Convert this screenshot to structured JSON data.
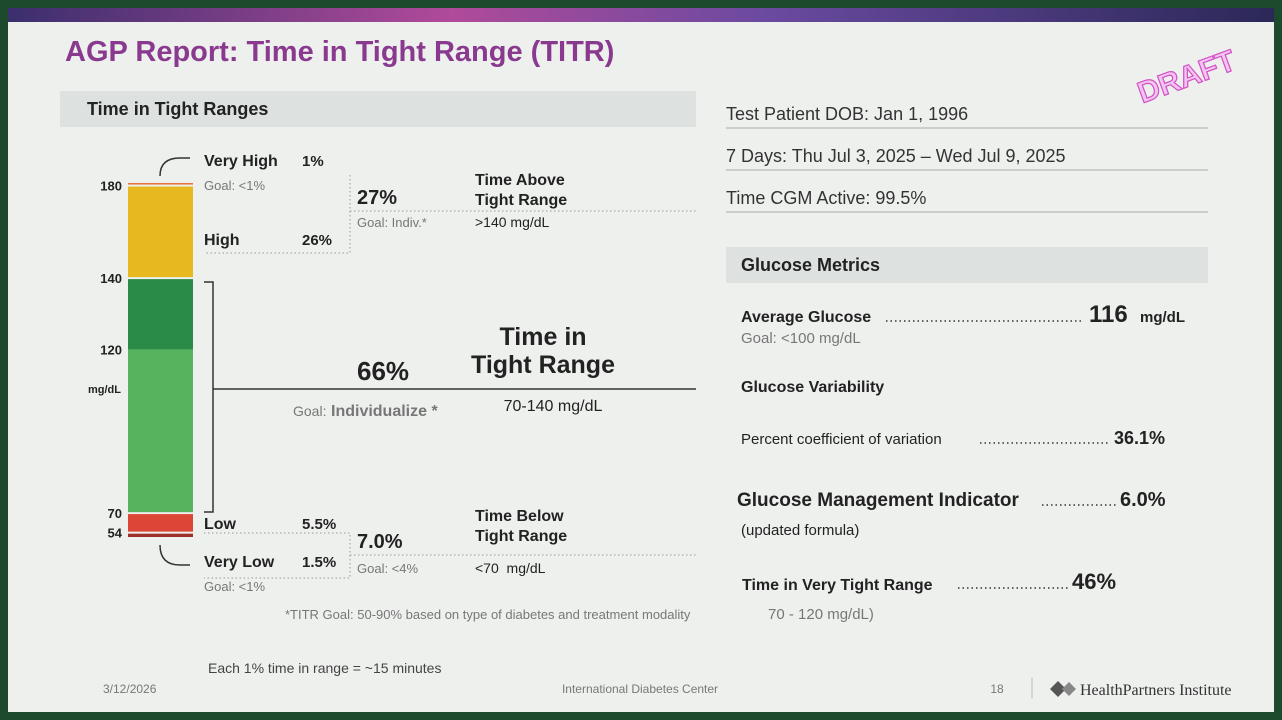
{
  "header": {
    "title": "AGP Report: Time in Tight Range (TITR)",
    "draft": "DRAFT"
  },
  "left": {
    "heading": "Time in Tight Ranges",
    "unit": "mg/dL",
    "bar": {
      "segments": [
        {
          "name": "Very Low",
          "value": 1.5,
          "label": "1.5%",
          "goal": "Goal: <1%",
          "color": "#9c2f2a",
          "top": 54
        },
        {
          "name": "Low",
          "value": 5.5,
          "label": "5.5%",
          "color": "#dc4636",
          "top": 70
        },
        {
          "value": 66,
          "label": "66%",
          "color": "#2a8a47",
          "top": 140
        },
        {
          "name": "High",
          "value": 26,
          "label": "26%",
          "color": "#e8b820",
          "top": 180
        },
        {
          "name": "Very High",
          "value": 1,
          "label": "1%",
          "goal": "Goal: <1%",
          "color": "#e8763a"
        }
      ],
      "inner": {
        "value": 46,
        "label": "46%",
        "color": "#58b35e",
        "top": 120
      }
    },
    "above": {
      "label": "27%",
      "goal": "Goal: Indiv.*",
      "title": [
        "Time Above",
        "Tight Range"
      ],
      "range": ">140 mg/dL"
    },
    "tight": {
      "goal_prefix": "Goal:",
      "goal": "Individualize *",
      "title": [
        "Time in",
        "Tight Range"
      ],
      "range": "70-140 mg/dL"
    },
    "below": {
      "label": "7.0%",
      "goal": "Goal: <4%",
      "title": [
        "Time Below",
        "Tight Range"
      ],
      "range": "<70  mg/dL"
    },
    "footnote": "*TITR Goal: 50-90% based on type of diabetes and treatment modality",
    "minutes_note": "Each 1% time in range = ~15 minutes"
  },
  "right": {
    "patient": [
      "Test Patient DOB: Jan 1, 1996",
      "7 Days: Thu Jul 3, 2025 – Wed Jul 9, 2025",
      "Time CGM Active: 99.5%"
    ],
    "metrics": {
      "heading": "Glucose Metrics",
      "average": {
        "label": "Average Glucose",
        "value": "116",
        "unit": "mg/dL",
        "goal": "Goal: <100 mg/dL"
      },
      "variability": "Glucose Variability",
      "cv": {
        "label": "Percent coefficient of variation",
        "value": "36.1%"
      },
      "gmi": {
        "label": "Glucose Management Indicator",
        "value": "6.0%",
        "note": "(updated formula)"
      },
      "tvtr": {
        "label": "Time in Very Tight Range",
        "range": "70 - 120 mg/dL)"
      }
    }
  },
  "footer": {
    "date": "3/12/2026",
    "center": "International Diabetes Center",
    "page": "18",
    "logo": "HealthPartners Institute"
  }
}
